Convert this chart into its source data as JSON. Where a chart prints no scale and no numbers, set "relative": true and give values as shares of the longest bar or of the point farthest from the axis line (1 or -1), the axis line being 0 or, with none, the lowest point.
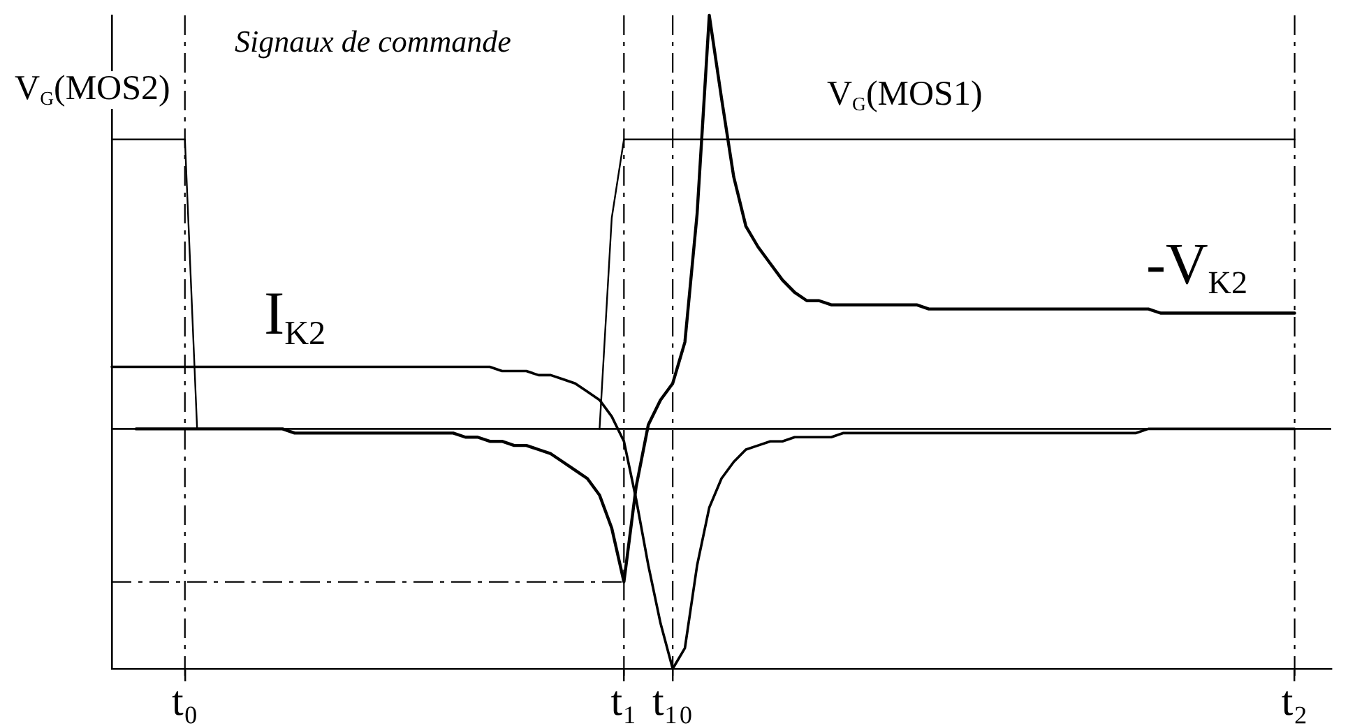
{
  "chart_data": {
    "type": "line",
    "title": "Signaux de commande",
    "relative": true,
    "marker": "none",
    "categories": [
      null,
      null,
      null,
      null,
      null,
      null,
      "t₀",
      null,
      null,
      null,
      null,
      null,
      null,
      null,
      null,
      null,
      null,
      null,
      null,
      null,
      null,
      null,
      null,
      null,
      null,
      null,
      null,
      null,
      null,
      null,
      null,
      null,
      null,
      null,
      null,
      null,
      null,
      null,
      null,
      null,
      null,
      null,
      "t₁",
      null,
      null,
      null,
      "t₁₀",
      null,
      null,
      null,
      null,
      null,
      null,
      null,
      null,
      null,
      null,
      null,
      null,
      null,
      null,
      null,
      null,
      null,
      null,
      null,
      null,
      null,
      null,
      null,
      null,
      null,
      null,
      null,
      null,
      null,
      null,
      null,
      null,
      null,
      null,
      null,
      null,
      null,
      null,
      null,
      null,
      null,
      null,
      null,
      null,
      null,
      null,
      null,
      null,
      null,
      null,
      "t₂",
      null,
      null,
      null
    ],
    "series": [
      {
        "name": "V$_{G}$(MOS2)",
        "color": "#000000",
        "values": [
          0.7,
          0.7,
          0.7,
          0.7,
          0.7,
          0.7,
          0.7,
          0,
          null,
          null,
          null,
          null,
          null,
          null,
          null,
          null,
          null,
          null,
          null,
          null,
          null,
          null,
          null,
          null,
          null,
          null,
          null,
          null,
          null,
          null,
          null,
          null,
          null,
          null,
          null,
          null,
          null,
          null,
          null,
          null,
          null,
          null,
          null,
          null,
          null,
          null,
          null,
          null,
          null,
          null,
          null,
          null,
          null,
          null,
          null,
          null,
          null,
          null,
          null,
          null,
          null,
          null,
          null,
          null,
          null,
          null,
          null,
          null,
          null,
          null,
          null,
          null,
          null,
          null,
          null,
          null,
          null,
          null,
          null,
          null,
          null,
          null,
          null,
          null,
          null,
          null,
          null,
          null,
          null,
          null,
          null,
          null,
          null,
          null,
          null,
          null,
          null,
          null,
          null,
          null,
          null
        ]
      },
      {
        "name": "V$_{G}$(MOS1)",
        "color": "#000000",
        "values": [
          null,
          null,
          null,
          null,
          null,
          null,
          null,
          null,
          null,
          null,
          null,
          null,
          null,
          null,
          null,
          null,
          null,
          null,
          null,
          null,
          null,
          null,
          null,
          null,
          null,
          null,
          null,
          null,
          null,
          null,
          null,
          null,
          null,
          null,
          null,
          null,
          null,
          null,
          null,
          null,
          0,
          0.51,
          0.7,
          0.7,
          0.7,
          0.7,
          0.7,
          0.7,
          0.7,
          0.7,
          0.7,
          0.7,
          0.7,
          0.7,
          0.7,
          0.7,
          0.7,
          0.7,
          0.7,
          0.7,
          0.7,
          0.7,
          0.7,
          0.7,
          0.7,
          0.7,
          0.7,
          0.7,
          0.7,
          0.7,
          0.7,
          0.7,
          0.7,
          0.7,
          0.7,
          0.7,
          0.7,
          0.7,
          0.7,
          0.7,
          0.7,
          0.7,
          0.7,
          0.7,
          0.7,
          0.7,
          0.7,
          0.7,
          0.7,
          0.7,
          0.7,
          0.7,
          0.7,
          0.7,
          0.7,
          0.7,
          0.7,
          0.7,
          null,
          null,
          null
        ]
      },
      {
        "name": "I$_{K2}$",
        "color": "#000000",
        "values": [
          0.15,
          0.15,
          0.15,
          0.15,
          0.15,
          0.15,
          0.15,
          0.15,
          0.15,
          0.15,
          0.15,
          0.15,
          0.15,
          0.15,
          0.15,
          0.15,
          0.15,
          0.15,
          0.15,
          0.15,
          0.15,
          0.15,
          0.15,
          0.15,
          0.15,
          0.15,
          0.15,
          0.15,
          0.15,
          0.15,
          0.15,
          0.15,
          0.14,
          0.14,
          0.14,
          0.13,
          0.13,
          0.12,
          0.11,
          0.09,
          0.07,
          0.03,
          -0.03,
          -0.17,
          -0.33,
          -0.47,
          -0.58,
          -0.53,
          -0.33,
          -0.19,
          -0.12,
          -0.08,
          -0.05,
          -0.04,
          -0.03,
          -0.03,
          -0.02,
          -0.02,
          -0.02,
          -0.02,
          -0.01,
          -0.01,
          -0.01,
          -0.01,
          -0.01,
          -0.01,
          -0.01,
          -0.01,
          -0.01,
          -0.01,
          -0.01,
          -0.01,
          -0.01,
          -0.01,
          -0.01,
          -0.01,
          -0.01,
          -0.01,
          -0.01,
          -0.01,
          -0.01,
          -0.01,
          -0.01,
          -0.01,
          -0.01,
          0,
          0,
          0,
          0,
          0,
          0,
          0,
          0,
          0,
          0,
          0,
          0,
          0,
          null,
          null,
          null
        ]
      },
      {
        "name": "-V$_{K2}$",
        "color": "#000000",
        "values": [
          null,
          null,
          0,
          0,
          0,
          0,
          0,
          0,
          0,
          0,
          0,
          0,
          0,
          0,
          0,
          -0.01,
          -0.01,
          -0.01,
          -0.01,
          -0.01,
          -0.01,
          -0.01,
          -0.01,
          -0.01,
          -0.01,
          -0.01,
          -0.01,
          -0.01,
          -0.01,
          -0.02,
          -0.02,
          -0.03,
          -0.03,
          -0.04,
          -0.04,
          -0.05,
          -0.06,
          -0.08,
          -0.1,
          -0.12,
          -0.16,
          -0.24,
          -0.37,
          -0.14,
          0.01,
          0.07,
          0.11,
          0.21,
          0.52,
          1,
          0.8,
          0.61,
          0.49,
          0.44,
          0.4,
          0.36,
          0.33,
          0.31,
          0.31,
          0.3,
          0.3,
          0.3,
          0.3,
          0.3,
          0.3,
          0.3,
          0.3,
          0.29,
          0.29,
          0.29,
          0.29,
          0.29,
          0.29,
          0.29,
          0.29,
          0.29,
          0.29,
          0.29,
          0.29,
          0.29,
          0.29,
          0.29,
          0.29,
          0.29,
          0.29,
          0.29,
          0.28,
          0.28,
          0.28,
          0.28,
          0.28,
          0.28,
          0.28,
          0.28,
          0.28,
          0.28,
          0.28,
          0.28,
          null,
          null,
          null
        ]
      }
    ],
    "ref_lines": [
      {
        "axis": "x",
        "value": "t₀",
        "line_style": "dashed"
      },
      {
        "axis": "x",
        "value": "t₁",
        "line_style": "dashed"
      },
      {
        "axis": "x",
        "value": "t₁₀",
        "line_style": "dashed"
      },
      {
        "axis": "x",
        "value": "t₂",
        "line_style": "dashed"
      },
      {
        "axis": "y",
        "value": -0.37,
        "line_style": "dashed"
      }
    ]
  }
}
